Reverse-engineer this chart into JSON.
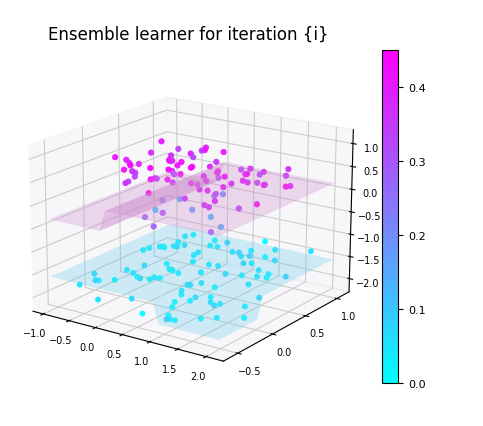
{
  "title": "Ensemble learner for iteration {i}",
  "xlim": [
    -1.2,
    2.3
  ],
  "ylim": [
    -0.7,
    1.2
  ],
  "zlim": [
    -2.3,
    1.3
  ],
  "x_ticks": [
    -1.0,
    -0.5,
    0.0,
    0.5,
    1.0,
    1.5,
    2.0
  ],
  "y_ticks": [
    -0.5,
    0.0,
    0.5,
    1.0
  ],
  "z_ticks": [
    -2.0,
    -1.5,
    -1.0,
    -0.5,
    0.0,
    0.5,
    1.0
  ],
  "cmap": "cool",
  "colorbar_ticks": [
    0.0,
    0.1,
    0.2,
    0.3,
    0.4
  ],
  "colorbar_vmin": 0.0,
  "colorbar_vmax": 0.45,
  "n_upper": 75,
  "n_lower": 85,
  "seed": 42,
  "elev": 18,
  "azim": -55,
  "title_fontsize": 12,
  "tick_fontsize": 7,
  "scatter_size_upper": 20,
  "scatter_size_lower": 18,
  "upper_plane_color": "#cc88cc",
  "lower_plane_color": "#66ccee",
  "pane_color": "#f0f0f4"
}
